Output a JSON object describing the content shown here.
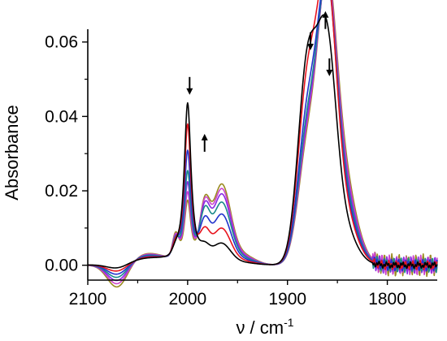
{
  "chart_data": {
    "type": "line",
    "xlabel": "ν / cm",
    "xlabel_superscript": "-1",
    "ylabel": "Absorbance",
    "xlim": [
      2100,
      1750
    ],
    "ylim": [
      -0.004,
      0.063
    ],
    "x_axis_reversed": true,
    "grid": false,
    "legend": "none",
    "x_ticks": [
      2100,
      2000,
      1900,
      1800
    ],
    "x_tick_labels": [
      "2100",
      "2000",
      "1900",
      "1800"
    ],
    "y_ticks": [
      0.0,
      0.02,
      0.04,
      0.06
    ],
    "y_tick_labels": [
      "0.00",
      "0.02",
      "0.04",
      "0.06"
    ],
    "arrows": [
      {
        "x": 1998,
        "y": 0.0458,
        "direction": "down"
      },
      {
        "x": 1983,
        "y": 0.0305,
        "direction": "up"
      },
      {
        "x": 1877,
        "y": 0.0578,
        "direction": "down"
      },
      {
        "x": 1862,
        "y": 0.0635,
        "direction": "up"
      },
      {
        "x": 1858,
        "y": 0.0508,
        "direction": "down"
      }
    ],
    "series": [
      {
        "color": "#000000",
        "p": [
          0.0435,
          0.003,
          0.0052,
          0.0016,
          0.0005,
          0.0525,
          0.049,
          0.0003,
          0.0015
        ]
      },
      {
        "color": "#e8141e",
        "p": [
          0.0378,
          0.0066,
          0.0092,
          0.0028,
          0.0009,
          0.0465,
          0.06,
          0.0006,
          0.0018
        ]
      },
      {
        "color": "#2233cc",
        "p": [
          0.0307,
          0.0092,
          0.013,
          0.0036,
          0.0013,
          0.038,
          0.0578,
          0.0009,
          0.0021
        ]
      },
      {
        "color": "#1a8a8a",
        "p": [
          0.0252,
          0.0116,
          0.0162,
          0.0044,
          0.0017,
          0.0342,
          0.0566,
          0.0012,
          0.0024
        ]
      },
      {
        "color": "#8a2be2",
        "p": [
          0.0222,
          0.0126,
          0.0184,
          0.005,
          0.002,
          0.032,
          0.0555,
          0.0015,
          0.0026
        ]
      },
      {
        "color": "#cc44cc",
        "p": [
          0.0195,
          0.0135,
          0.0198,
          0.0056,
          0.0023,
          0.0305,
          0.0548,
          0.0017,
          0.0028
        ]
      },
      {
        "color": "#9a8a20",
        "p": [
          0.0172,
          0.014,
          0.021,
          0.0062,
          0.0026,
          0.029,
          0.054,
          0.0019,
          0.003
        ]
      }
    ]
  }
}
